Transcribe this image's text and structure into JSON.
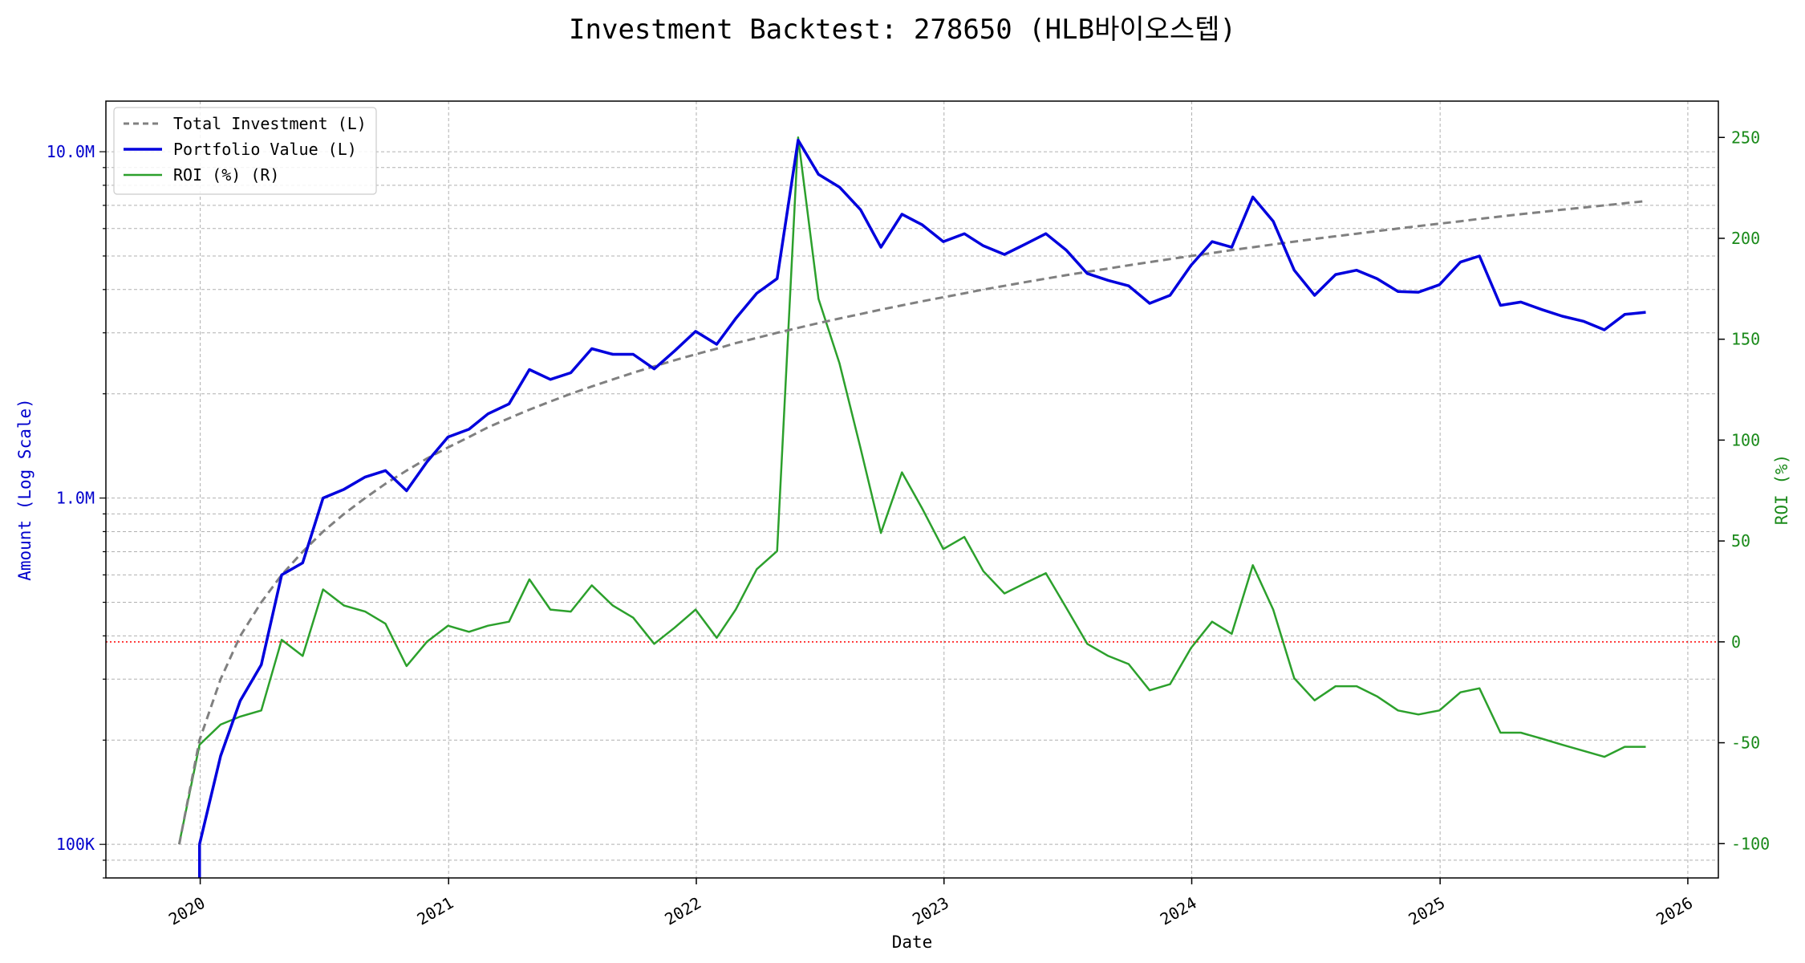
{
  "chart_data": {
    "type": "line",
    "title": "Investment Backtest: 278650 (HLB바이오스텝)",
    "xlabel": "Date",
    "ylabel_left": "Amount (Log Scale)",
    "ylabel_right": "ROI (%)",
    "left_axis_scale": "log",
    "left_axis_range": [
      80000,
      14000000
    ],
    "right_axis_range": [
      -117,
      268
    ],
    "x_range": [
      "2019-08-15",
      "2026-02-15"
    ],
    "x_ticks": [
      "2020",
      "2021",
      "2022",
      "2023",
      "2024",
      "2025",
      "2026"
    ],
    "left_ticks": [
      {
        "value": 100000,
        "label": "100K"
      },
      {
        "value": 1000000,
        "label": "1.0M"
      },
      {
        "value": 10000000,
        "label": "10.0M"
      }
    ],
    "right_ticks": [
      -100,
      -50,
      0,
      50,
      100,
      150,
      200,
      250
    ],
    "grid": true,
    "legend_position": "top-left",
    "reference_line": {
      "axis": "right",
      "value": 0,
      "color": "#ff0000",
      "style": "dotted"
    },
    "series": [
      {
        "name": "Total Investment (L)",
        "axis": "left",
        "color": "#808080",
        "style": "dashed",
        "x": [
          "2019-12-01",
          "2019-12-31",
          "2020-01-31",
          "2020-02-29",
          "2020-03-31",
          "2020-04-30",
          "2020-05-31",
          "2020-06-30",
          "2020-07-31",
          "2020-08-31",
          "2020-09-30",
          "2020-10-31",
          "2020-11-30",
          "2020-12-31",
          "2021-01-31",
          "2021-02-28",
          "2021-03-31",
          "2021-04-30",
          "2021-05-31",
          "2021-06-30",
          "2021-07-31",
          "2021-08-31",
          "2021-09-30",
          "2021-10-31",
          "2021-11-30",
          "2021-12-31",
          "2022-01-31",
          "2022-02-28",
          "2022-03-31",
          "2022-04-30",
          "2022-05-31",
          "2022-06-30",
          "2022-07-31",
          "2022-08-31",
          "2022-09-30",
          "2022-10-31",
          "2022-11-30",
          "2022-12-31",
          "2023-01-31",
          "2023-02-28",
          "2023-03-31",
          "2023-04-30",
          "2023-05-31",
          "2023-06-30",
          "2023-07-31",
          "2023-08-31",
          "2023-09-30",
          "2023-10-31",
          "2023-11-30",
          "2023-12-31",
          "2024-01-31",
          "2024-02-29",
          "2024-03-31",
          "2024-04-30",
          "2024-05-31",
          "2024-06-30",
          "2024-07-31",
          "2024-08-31",
          "2024-09-30",
          "2024-10-31",
          "2024-11-30",
          "2024-12-31",
          "2025-01-31",
          "2025-02-28",
          "2025-03-31",
          "2025-04-30",
          "2025-05-31",
          "2025-06-30",
          "2025-07-31",
          "2025-08-31",
          "2025-09-30",
          "2025-10-31"
        ],
        "values": [
          100000,
          200000,
          300000,
          400000,
          500000,
          600000,
          700000,
          800000,
          900000,
          1000000,
          1100000,
          1200000,
          1300000,
          1400000,
          1500000,
          1600000,
          1700000,
          1800000,
          1900000,
          2000000,
          2100000,
          2200000,
          2300000,
          2400000,
          2500000,
          2600000,
          2700000,
          2800000,
          2900000,
          3000000,
          3100000,
          3200000,
          3300000,
          3400000,
          3500000,
          3600000,
          3700000,
          3800000,
          3900000,
          4000000,
          4100000,
          4200000,
          4300000,
          4400000,
          4500000,
          4600000,
          4700000,
          4800000,
          4900000,
          5000000,
          5100000,
          5200000,
          5300000,
          5400000,
          5500000,
          5600000,
          5700000,
          5800000,
          5900000,
          6000000,
          6100000,
          6200000,
          6300000,
          6400000,
          6500000,
          6600000,
          6700000,
          6800000,
          6900000,
          7000000,
          7100000,
          7200000
        ]
      },
      {
        "name": "Portfolio Value (L)",
        "axis": "left",
        "color": "#0000dd",
        "style": "solid",
        "x": [
          "2019-12-31",
          "2020-01-31",
          "2020-02-29",
          "2020-03-31",
          "2020-04-30",
          "2020-05-31",
          "2020-06-30",
          "2020-07-31",
          "2020-08-31",
          "2020-09-30",
          "2020-10-31",
          "2020-11-30",
          "2020-12-31",
          "2021-01-31",
          "2021-02-28",
          "2021-03-31",
          "2021-04-30",
          "2021-05-31",
          "2021-06-30",
          "2021-07-31",
          "2021-08-31",
          "2021-09-30",
          "2021-10-31",
          "2021-11-30",
          "2021-12-31",
          "2022-01-31",
          "2022-02-28",
          "2022-03-31",
          "2022-04-30",
          "2022-05-31",
          "2022-06-30",
          "2022-07-31",
          "2022-08-31",
          "2022-09-30",
          "2022-10-31",
          "2022-11-30",
          "2022-12-31",
          "2023-01-31",
          "2023-02-28",
          "2023-03-31",
          "2023-04-30",
          "2023-05-31",
          "2023-06-30",
          "2023-07-31",
          "2023-08-31",
          "2023-09-30",
          "2023-10-31",
          "2023-11-30",
          "2023-12-31",
          "2024-01-31",
          "2024-02-29",
          "2024-03-31",
          "2024-04-30",
          "2024-05-31",
          "2024-06-30",
          "2024-07-31",
          "2024-08-31",
          "2024-09-30",
          "2024-10-31",
          "2024-11-30",
          "2024-12-31",
          "2025-01-31",
          "2025-02-28",
          "2025-03-31",
          "2025-04-30",
          "2025-05-31",
          "2025-06-30",
          "2025-07-31",
          "2025-08-31",
          "2025-09-30",
          "2025-10-31"
        ],
        "values": [
          100000,
          180000,
          260000,
          330000,
          600000,
          650000,
          1000000,
          1060000,
          1150000,
          1200000,
          1050000,
          1270000,
          1500000,
          1580000,
          1750000,
          1870000,
          2350000,
          2200000,
          2300000,
          2700000,
          2600000,
          2600000,
          2360000,
          2660000,
          3030000,
          2780000,
          3300000,
          3900000,
          4300000,
          10800000,
          8600000,
          7900000,
          6800000,
          5300000,
          6600000,
          6150000,
          5500000,
          5800000,
          5350000,
          5050000,
          5400000,
          5800000,
          5200000,
          4450000,
          4250000,
          4100000,
          3650000,
          3850000,
          4700000,
          5500000,
          5300000,
          7400000,
          6300000,
          4550000,
          3850000,
          4420000,
          4550000,
          4300000,
          3950000,
          3930000,
          4130000,
          4800000,
          5000000,
          3600000,
          3680000,
          3500000,
          3350000,
          3240000,
          3060000,
          3390000,
          3440000
        ]
      },
      {
        "name": "ROI (%) (R)",
        "axis": "right",
        "color": "#2ca02c",
        "style": "solid",
        "x": [
          "2019-12-01",
          "2019-12-31",
          "2020-01-31",
          "2020-02-29",
          "2020-03-31",
          "2020-04-30",
          "2020-05-31",
          "2020-06-30",
          "2020-07-31",
          "2020-08-31",
          "2020-09-30",
          "2020-10-31",
          "2020-11-30",
          "2020-12-31",
          "2021-01-31",
          "2021-02-28",
          "2021-03-31",
          "2021-04-30",
          "2021-05-31",
          "2021-06-30",
          "2021-07-31",
          "2021-08-31",
          "2021-09-30",
          "2021-10-31",
          "2021-11-30",
          "2021-12-31",
          "2022-01-31",
          "2022-02-28",
          "2022-03-31",
          "2022-04-30",
          "2022-05-31",
          "2022-06-30",
          "2022-07-31",
          "2022-08-31",
          "2022-09-30",
          "2022-10-31",
          "2022-11-30",
          "2022-12-31",
          "2023-01-31",
          "2023-02-28",
          "2023-03-31",
          "2023-04-30",
          "2023-05-31",
          "2023-06-30",
          "2023-07-31",
          "2023-08-31",
          "2023-09-30",
          "2023-10-31",
          "2023-11-30",
          "2023-12-31",
          "2024-01-31",
          "2024-02-29",
          "2024-03-31",
          "2024-04-30",
          "2024-05-31",
          "2024-06-30",
          "2024-07-31",
          "2024-08-31",
          "2024-09-30",
          "2024-10-31",
          "2024-11-30",
          "2024-12-31",
          "2025-01-31",
          "2025-02-28",
          "2025-03-31",
          "2025-04-30",
          "2025-05-31",
          "2025-06-30",
          "2025-07-31",
          "2025-08-31",
          "2025-09-30",
          "2025-10-31"
        ],
        "values": [
          -100,
          -51,
          -41,
          -37,
          -34,
          1,
          -7,
          26,
          18,
          15,
          9,
          -12,
          0,
          8,
          5,
          8,
          10,
          31,
          16,
          15,
          28,
          18,
          12,
          -1,
          7,
          16,
          2,
          16,
          36,
          45,
          250,
          170,
          138,
          96,
          54,
          84,
          66,
          46,
          52,
          35,
          24,
          29,
          34,
          17,
          -1,
          -7,
          -11,
          -24,
          -21,
          -3,
          10,
          4,
          38,
          16,
          -18,
          -29,
          -22,
          -22,
          -27,
          -34,
          -36,
          -34,
          -25,
          -23,
          -45,
          -45,
          -48,
          -51,
          -54,
          -57,
          -52,
          -52
        ]
      }
    ]
  }
}
